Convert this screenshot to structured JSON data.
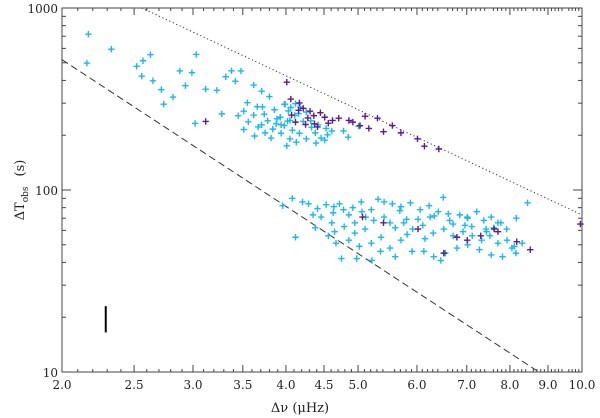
{
  "chart_data": {
    "type": "scatter",
    "title": "",
    "xlabel": "Δν  (μHz)",
    "ylabel": {
      "base": "ΔT",
      "subscript": "obs",
      "unit": "(s)"
    },
    "xscale": "log",
    "yscale": "log",
    "xlim": [
      2.0,
      10.0
    ],
    "ylim": [
      10,
      1000
    ],
    "x_ticks": [
      2.0,
      2.5,
      3.0,
      3.5,
      4.0,
      4.5,
      5.0,
      6.0,
      7.0,
      8.0,
      9.0,
      10.0
    ],
    "x_tick_labels": [
      "2.0",
      "2.5",
      "3.0",
      "3.5",
      "4.0",
      "4.5",
      "5.0",
      "6.0",
      "7.0",
      "8.0",
      "9.0",
      "10.0"
    ],
    "y_ticks": [
      10,
      100,
      1000
    ],
    "y_tick_labels": [
      "10",
      "100",
      "1000"
    ],
    "grid": false,
    "legend": "none",
    "colors": {
      "series_light": "#1ab8ee",
      "series_dark": "#5a1a96",
      "lines": "#333333"
    },
    "series": [
      {
        "color": "light",
        "marker": "+",
        "points": [
          [
            2.17,
            718
          ],
          [
            2.16,
            498
          ],
          [
            2.33,
            594
          ],
          [
            2.52,
            478
          ],
          [
            2.57,
            513
          ],
          [
            2.63,
            554
          ],
          [
            2.56,
            422
          ],
          [
            2.65,
            398
          ],
          [
            2.72,
            356
          ],
          [
            2.88,
            451
          ],
          [
            2.82,
            324
          ],
          [
            2.93,
            374
          ],
          [
            2.99,
            441
          ],
          [
            3.03,
            556
          ],
          [
            3.12,
            358
          ],
          [
            3.23,
            353
          ],
          [
            3.32,
            419
          ],
          [
            3.38,
            452
          ],
          [
            3.48,
            451
          ],
          [
            3.42,
            396
          ],
          [
            3.28,
            262
          ],
          [
            3.02,
            232
          ],
          [
            2.74,
            296
          ],
          [
            3.62,
            377
          ],
          [
            3.71,
            349
          ],
          [
            3.55,
            302
          ],
          [
            3.66,
            287
          ],
          [
            3.8,
            326
          ],
          [
            3.62,
            258
          ],
          [
            3.74,
            261
          ],
          [
            3.86,
            276
          ],
          [
            3.93,
            251
          ],
          [
            3.98,
            296
          ],
          [
            4.03,
            272
          ],
          [
            4.11,
            257
          ],
          [
            4.18,
            286
          ],
          [
            4.26,
            268
          ],
          [
            4.05,
            241
          ],
          [
            3.94,
            228
          ],
          [
            3.84,
            216
          ],
          [
            3.75,
            206
          ],
          [
            3.67,
            222
          ],
          [
            3.56,
            237
          ],
          [
            3.51,
            215
          ],
          [
            3.63,
            198
          ],
          [
            3.71,
            228
          ],
          [
            3.89,
            246
          ],
          [
            3.98,
            226
          ],
          [
            4.08,
            213
          ],
          [
            4.17,
            205
          ],
          [
            4.22,
            238
          ],
          [
            4.33,
            221
          ],
          [
            4.42,
            228
          ],
          [
            4.53,
            218
          ],
          [
            4.61,
            211
          ],
          [
            4.38,
            206
          ],
          [
            4.46,
            193
          ],
          [
            4.05,
            191
          ],
          [
            3.94,
            205
          ],
          [
            4.13,
            183
          ],
          [
            4.01,
            175
          ],
          [
            3.82,
            193
          ],
          [
            3.88,
            231
          ],
          [
            4.02,
            239
          ],
          [
            4.26,
            191
          ],
          [
            4.39,
            181
          ],
          [
            4.51,
            188
          ],
          [
            4.85,
            195
          ],
          [
            4.78,
            211
          ],
          [
            5.01,
            224
          ],
          [
            3.51,
            271
          ],
          [
            3.45,
            256
          ],
          [
            4.12,
            298
          ],
          [
            3.99,
            296
          ],
          [
            4.32,
            240
          ],
          [
            4.16,
            263
          ],
          [
            3.78,
            240
          ],
          [
            3.72,
            286
          ],
          [
            4.06,
            284
          ],
          [
            4.55,
            201
          ],
          [
            4.08,
            90
          ],
          [
            4.21,
            86
          ],
          [
            4.29,
            84
          ],
          [
            4.41,
            79
          ],
          [
            4.53,
            83
          ],
          [
            4.64,
            81
          ],
          [
            4.72,
            84
          ],
          [
            4.78,
            78
          ],
          [
            4.92,
            80
          ],
          [
            5.06,
            76
          ],
          [
            5.21,
            78
          ],
          [
            5.42,
            86
          ],
          [
            5.56,
            84
          ],
          [
            5.71,
            81
          ],
          [
            5.88,
            85
          ],
          [
            6.06,
            78
          ],
          [
            6.23,
            82
          ],
          [
            6.41,
            76
          ],
          [
            6.61,
            74
          ],
          [
            6.51,
            91
          ],
          [
            6.85,
            73
          ],
          [
            7.01,
            71
          ],
          [
            7.22,
            76
          ],
          [
            7.38,
            68
          ],
          [
            7.55,
            71
          ],
          [
            7.71,
            66
          ],
          [
            7.92,
            61
          ],
          [
            8.16,
            70
          ],
          [
            8.45,
            85
          ],
          [
            4.35,
            73
          ],
          [
            4.46,
            71
          ],
          [
            4.61,
            66
          ],
          [
            4.79,
            63
          ],
          [
            4.95,
            66
          ],
          [
            5.11,
            61
          ],
          [
            5.25,
            68
          ],
          [
            5.42,
            71
          ],
          [
            5.61,
            62
          ],
          [
            5.76,
            66
          ],
          [
            5.92,
            61
          ],
          [
            6.11,
            64
          ],
          [
            6.31,
            58
          ],
          [
            6.52,
            61
          ],
          [
            6.71,
            56
          ],
          [
            6.92,
            59
          ],
          [
            7.12,
            56
          ],
          [
            7.33,
            53
          ],
          [
            7.52,
            56
          ],
          [
            7.71,
            51
          ],
          [
            7.93,
            53
          ],
          [
            8.11,
            49
          ],
          [
            8.31,
            51
          ],
          [
            4.56,
            56
          ],
          [
            4.67,
            51
          ],
          [
            4.86,
            53
          ],
          [
            5.02,
            49
          ],
          [
            5.21,
            51
          ],
          [
            5.36,
            46
          ],
          [
            5.52,
            48
          ],
          [
            5.71,
            53
          ],
          [
            5.91,
            46
          ],
          [
            6.13,
            46
          ],
          [
            6.32,
            43
          ],
          [
            6.55,
            45
          ],
          [
            6.79,
            48
          ],
          [
            7.02,
            50
          ],
          [
            7.28,
            47
          ],
          [
            7.55,
            44
          ],
          [
            7.82,
            43
          ],
          [
            8.15,
            45
          ],
          [
            8.05,
            48
          ],
          [
            4.75,
            42
          ],
          [
            5.22,
            41
          ],
          [
            5.61,
            43
          ],
          [
            6.46,
            41
          ],
          [
            4.65,
            59
          ],
          [
            4.86,
            73
          ],
          [
            5.12,
            71
          ],
          [
            5.52,
            66
          ],
          [
            6.02,
            69
          ],
          [
            6.25,
            71
          ],
          [
            6.71,
            65
          ],
          [
            7.11,
            63
          ],
          [
            7.44,
            59
          ],
          [
            7.61,
            62
          ],
          [
            7.78,
            66
          ],
          [
            4.12,
            55
          ],
          [
            3.96,
            82
          ],
          [
            5.05,
            86
          ],
          [
            5.32,
            89
          ],
          [
            5.69,
            77
          ],
          [
            6.33,
            72
          ],
          [
            6.64,
            68
          ],
          [
            6.96,
            64
          ],
          [
            7.43,
            61
          ],
          [
            7.02,
            70
          ],
          [
            4.95,
            58
          ],
          [
            5.37,
            55
          ],
          [
            5.82,
            57
          ],
          [
            6.15,
            54
          ],
          [
            5.81,
            69
          ],
          [
            4.38,
            62
          ],
          [
            4.63,
            75
          ],
          [
            4.98,
            42
          ]
        ]
      },
      {
        "color": "dark",
        "marker": "+",
        "points": [
          [
            4.01,
            391
          ],
          [
            4.06,
            316
          ],
          [
            4.17,
            301
          ],
          [
            4.22,
            281
          ],
          [
            4.31,
            271
          ],
          [
            4.36,
            256
          ],
          [
            4.45,
            266
          ],
          [
            4.51,
            251
          ],
          [
            4.62,
            241
          ],
          [
            4.71,
            248
          ],
          [
            4.86,
            241
          ],
          [
            4.92,
            236
          ],
          [
            5.03,
            226
          ],
          [
            5.11,
            254
          ],
          [
            5.17,
            218
          ],
          [
            5.31,
            248
          ],
          [
            5.41,
            209
          ],
          [
            5.56,
            226
          ],
          [
            5.71,
            206
          ],
          [
            6.01,
            191
          ],
          [
            6.14,
            174
          ],
          [
            6.42,
            168
          ],
          [
            4.12,
            236
          ],
          [
            4.25,
            229
          ],
          [
            4.41,
            222
          ],
          [
            4.28,
            249
          ],
          [
            4.37,
            231
          ],
          [
            4.56,
            233
          ],
          [
            3.12,
            238
          ],
          [
            4.16,
            274
          ],
          [
            4.07,
            258
          ],
          [
            5.07,
            71
          ],
          [
            5.41,
            66
          ],
          [
            6.02,
            61
          ],
          [
            6.52,
            45
          ],
          [
            7.01,
            53
          ],
          [
            7.62,
            61
          ],
          [
            7.71,
            59
          ],
          [
            8.17,
            52
          ],
          [
            8.52,
            47
          ],
          [
            9.95,
            65
          ],
          [
            7.31,
            56
          ],
          [
            6.79,
            55
          ]
        ]
      }
    ],
    "reference_lines": [
      {
        "style": "dotted",
        "points": [
          [
            2.56,
            1000
          ],
          [
            10.0,
            73
          ]
        ]
      },
      {
        "style": "dashed",
        "points": [
          [
            2.0,
            520
          ],
          [
            8.75,
            10
          ]
        ]
      }
    ],
    "error_bar": {
      "x": 2.29,
      "y_range": [
        16.5,
        23.0
      ]
    }
  }
}
